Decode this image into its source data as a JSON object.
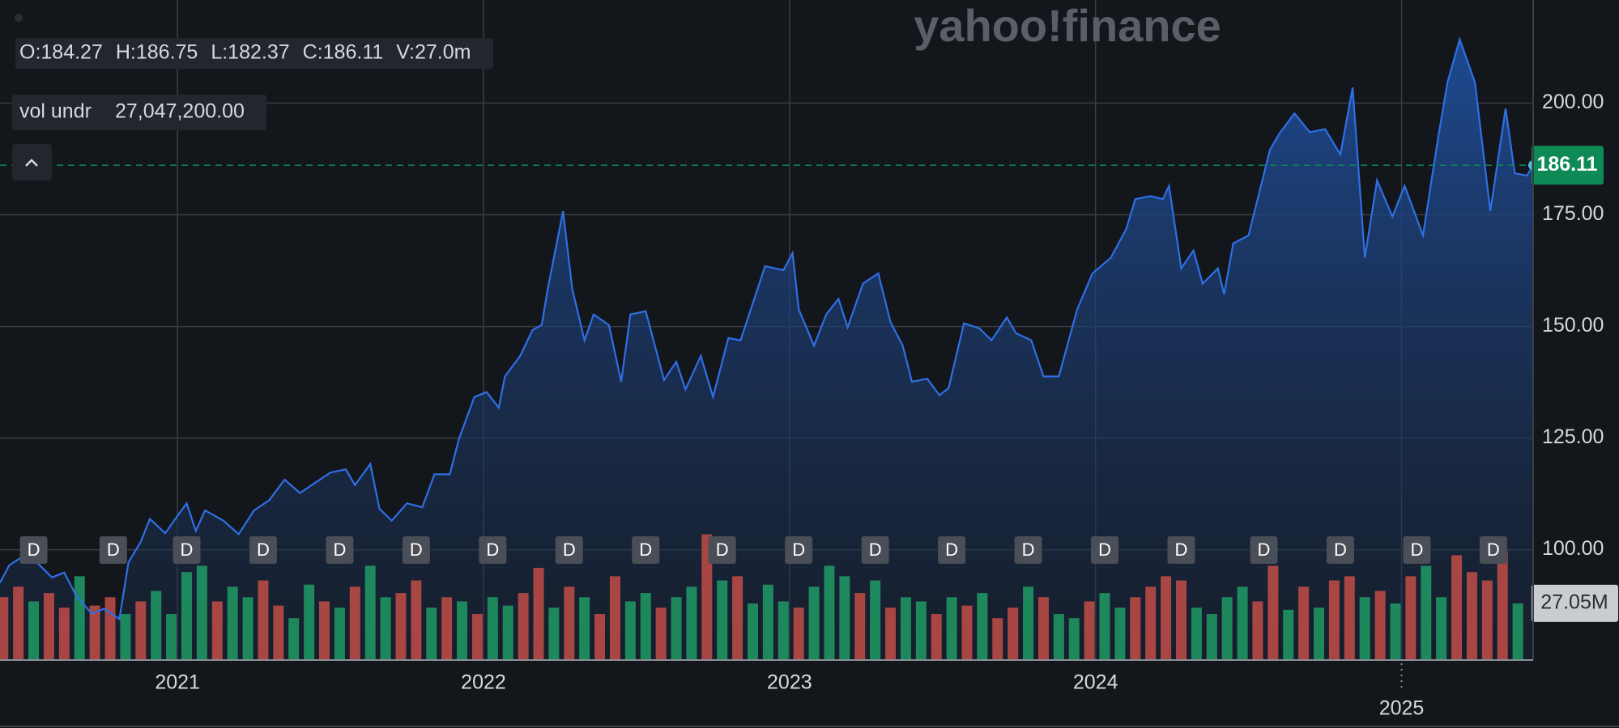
{
  "chart_data": {
    "type": "line",
    "watermark": "yahoo!finance",
    "ohlc": [
      "O:184.27",
      "H:186.75",
      "L:182.37",
      "C:186.11",
      "V:27.0m"
    ],
    "indicator": {
      "name": "vol undr",
      "value": "27,047,200.00"
    },
    "x": [
      2020.42,
      2020.45,
      2020.49,
      2020.54,
      2020.59,
      2020.63,
      2020.67,
      2020.72,
      2020.76,
      2020.81,
      2020.84,
      2020.88,
      2020.91,
      2020.96,
      2021.0,
      2021.03,
      2021.06,
      2021.09,
      2021.15,
      2021.2,
      2021.25,
      2021.3,
      2021.35,
      2021.4,
      2021.45,
      2021.5,
      2021.55,
      2021.58,
      2021.63,
      2021.66,
      2021.7,
      2021.75,
      2021.8,
      2021.84,
      2021.89,
      2021.92,
      2021.97,
      2022.01,
      2022.05,
      2022.07,
      2022.12,
      2022.16,
      2022.19,
      2022.21,
      2022.26,
      2022.29,
      2022.33,
      2022.36,
      2022.41,
      2022.45,
      2022.48,
      2022.53,
      2022.59,
      2022.63,
      2022.66,
      2022.71,
      2022.75,
      2022.8,
      2022.84,
      2022.92,
      2022.98,
      2023.01,
      2023.03,
      2023.08,
      2023.12,
      2023.16,
      2023.19,
      2023.24,
      2023.29,
      2023.33,
      2023.37,
      2023.4,
      2023.45,
      2023.49,
      2023.52,
      2023.57,
      2023.62,
      2023.66,
      2023.71,
      2023.74,
      2023.79,
      2023.83,
      2023.88,
      2023.94,
      2023.99,
      2024.05,
      2024.1,
      2024.13,
      2024.18,
      2024.22,
      2024.24,
      2024.28,
      2024.32,
      2024.35,
      2024.4,
      2024.42,
      2024.45,
      2024.5,
      2024.57,
      2024.6,
      2024.65,
      2024.7,
      2024.75,
      2024.8,
      2024.84,
      2024.88,
      2024.92,
      2024.97,
      2025.01,
      2025.07,
      2025.12,
      2025.15,
      2025.19,
      2025.24,
      2025.29,
      2025.34,
      2025.37,
      2025.41,
      2025.43
    ],
    "series": [
      {
        "color": "#2f6fe6",
        "values": [
          92.6,
          96.5,
          98.3,
          97.2,
          93.8,
          94.9,
          89.6,
          85.7,
          86.8,
          84.5,
          97.2,
          101.8,
          106.9,
          103.7,
          107.6,
          110.4,
          104.2,
          108.8,
          106.5,
          103.5,
          108.8,
          111.1,
          115.7,
          112.7,
          115,
          117.3,
          118,
          114.5,
          119.2,
          109.2,
          106.5,
          110.4,
          109.5,
          116.9,
          116.9,
          124.9,
          134.2,
          135.3,
          131.8,
          138.8,
          143.4,
          149.2,
          150.3,
          158.4,
          175.8,
          158.4,
          146.9,
          152.7,
          150.3,
          137.6,
          152.7,
          153.4,
          138,
          142.1,
          135.9,
          143.4,
          134.2,
          147.4,
          146.9,
          163.5,
          162.6,
          166.4,
          153.8,
          145.7,
          152.7,
          156.2,
          149.8,
          159.6,
          161.9,
          151,
          145.7,
          137.6,
          138.3,
          134.6,
          136.2,
          150.7,
          149.6,
          146.9,
          152,
          148.5,
          146.9,
          138.8,
          138.8,
          153.8,
          161.9,
          165.4,
          171.8,
          178.5,
          179.2,
          178.5,
          181.5,
          163,
          167,
          159.6,
          163,
          157.2,
          168.6,
          170.4,
          189.6,
          193.1,
          197.7,
          193.5,
          194.2,
          188.5,
          203.5,
          165.4,
          182.7,
          174.6,
          181.5,
          170.4,
          192.5,
          204.6,
          214.3,
          204.6,
          175.8,
          198.8,
          184.3,
          183.8,
          186.11
        ]
      }
    ],
    "volume": {
      "axis": "y2",
      "x": [
        2020.43,
        2020.48,
        2020.53,
        2020.58,
        2020.63,
        2020.68,
        2020.73,
        2020.78,
        2020.83,
        2020.88,
        2020.93,
        2020.98,
        2021.03,
        2021.08,
        2021.13,
        2021.18,
        2021.23,
        2021.28,
        2021.33,
        2021.38,
        2021.43,
        2021.48,
        2021.53,
        2021.58,
        2021.63,
        2021.68,
        2021.73,
        2021.78,
        2021.83,
        2021.88,
        2021.93,
        2021.98,
        2022.03,
        2022.08,
        2022.13,
        2022.18,
        2022.23,
        2022.28,
        2022.33,
        2022.38,
        2022.43,
        2022.48,
        2022.53,
        2022.58,
        2022.63,
        2022.68,
        2022.73,
        2022.78,
        2022.83,
        2022.88,
        2022.93,
        2022.98,
        2023.03,
        2023.08,
        2023.13,
        2023.18,
        2023.23,
        2023.28,
        2023.33,
        2023.38,
        2023.43,
        2023.48,
        2023.53,
        2023.58,
        2023.63,
        2023.68,
        2023.73,
        2023.78,
        2023.83,
        2023.88,
        2023.93,
        2023.98,
        2024.03,
        2024.08,
        2024.13,
        2024.18,
        2024.23,
        2024.28,
        2024.33,
        2024.38,
        2024.43,
        2024.48,
        2024.53,
        2024.58,
        2024.63,
        2024.68,
        2024.73,
        2024.78,
        2024.83,
        2024.88,
        2024.93,
        2024.98,
        2025.03,
        2025.08,
        2025.13,
        2025.18,
        2025.23,
        2025.28,
        2025.33,
        2025.38
      ],
      "values": [
        30,
        35,
        28,
        32,
        25,
        40,
        26,
        30,
        22,
        28,
        33,
        22,
        42,
        45,
        28,
        35,
        30,
        38,
        26,
        20,
        36,
        28,
        25,
        35,
        45,
        30,
        32,
        38,
        25,
        30,
        28,
        22,
        30,
        26,
        32,
        44,
        25,
        35,
        30,
        22,
        40,
        28,
        32,
        25,
        30,
        35,
        60,
        38,
        40,
        27,
        36,
        28,
        25,
        35,
        45,
        40,
        32,
        38,
        25,
        30,
        28,
        22,
        30,
        26,
        32,
        20,
        25,
        35,
        30,
        22,
        20,
        28,
        32,
        25,
        30,
        35,
        40,
        38,
        25,
        22,
        30,
        35,
        28,
        45,
        24,
        35,
        25,
        38,
        40,
        30,
        33,
        27,
        40,
        45,
        30,
        50,
        42,
        38,
        52,
        27.05
      ],
      "colors": [
        "#b84a46",
        "#b84a46",
        "#1f9463",
        "#b84a46",
        "#b84a46",
        "#1f9463",
        "#b84a46",
        "#b84a46",
        "#1f9463",
        "#b84a46",
        "#1f9463",
        "#1f9463",
        "#1f9463",
        "#1f9463",
        "#b84a46",
        "#1f9463",
        "#1f9463",
        "#b84a46",
        "#b84a46",
        "#1f9463",
        "#1f9463",
        "#b84a46",
        "#1f9463",
        "#b84a46",
        "#1f9463",
        "#1f9463",
        "#b84a46",
        "#b84a46",
        "#1f9463",
        "#b84a46",
        "#1f9463",
        "#b84a46",
        "#1f9463",
        "#1f9463",
        "#b84a46",
        "#b84a46",
        "#1f9463",
        "#b84a46",
        "#1f9463",
        "#b84a46",
        "#b84a46",
        "#1f9463",
        "#1f9463",
        "#b84a46",
        "#1f9463",
        "#1f9463",
        "#b84a46",
        "#1f9463",
        "#b84a46",
        "#1f9463",
        "#1f9463",
        "#1f9463",
        "#b84a46",
        "#1f9463",
        "#1f9463",
        "#1f9463",
        "#b84a46",
        "#1f9463",
        "#b84a46",
        "#1f9463",
        "#1f9463",
        "#b84a46",
        "#1f9463",
        "#b84a46",
        "#1f9463",
        "#b84a46",
        "#b84a46",
        "#1f9463",
        "#b84a46",
        "#1f9463",
        "#1f9463",
        "#b84a46",
        "#1f9463",
        "#1f9463",
        "#b84a46",
        "#b84a46",
        "#b84a46",
        "#b84a46",
        "#1f9463",
        "#1f9463",
        "#1f9463",
        "#1f9463",
        "#b84a46",
        "#b84a46",
        "#1f9463",
        "#b84a46",
        "#1f9463",
        "#b84a46",
        "#b84a46",
        "#1f9463",
        "#b84a46",
        "#1f9463",
        "#b84a46",
        "#1f9463",
        "#1f9463",
        "#b84a46",
        "#b84a46",
        "#b84a46",
        "#b84a46",
        "#1f9463"
      ],
      "last": {
        "value": 27.05,
        "label": "27.05M"
      }
    },
    "dividends": {
      "label": "D",
      "x": [
        2020.53,
        2020.79,
        2021.03,
        2021.28,
        2021.53,
        2021.78,
        2022.03,
        2022.28,
        2022.53,
        2022.78,
        2023.03,
        2023.28,
        2023.53,
        2023.78,
        2024.03,
        2024.28,
        2024.55,
        2024.8,
        2025.05,
        2025.3
      ]
    },
    "last_price": 186.11,
    "last_price_color": "#0d8a55",
    "xlim": [
      2020.42,
      2025.43
    ],
    "xticks": [
      2021,
      2022,
      2023,
      2024,
      2025
    ],
    "ylim": [
      75.3,
      223.1
    ],
    "yticks": [
      {
        "value": 100,
        "label": "100.00"
      },
      {
        "value": 125,
        "label": "125.00"
      },
      {
        "value": 150,
        "label": "150.00"
      },
      {
        "value": 175,
        "label": "175.00"
      },
      {
        "value": 200,
        "label": "200.00"
      }
    ],
    "y2lim": [
      0,
      315
    ],
    "grid": true
  }
}
